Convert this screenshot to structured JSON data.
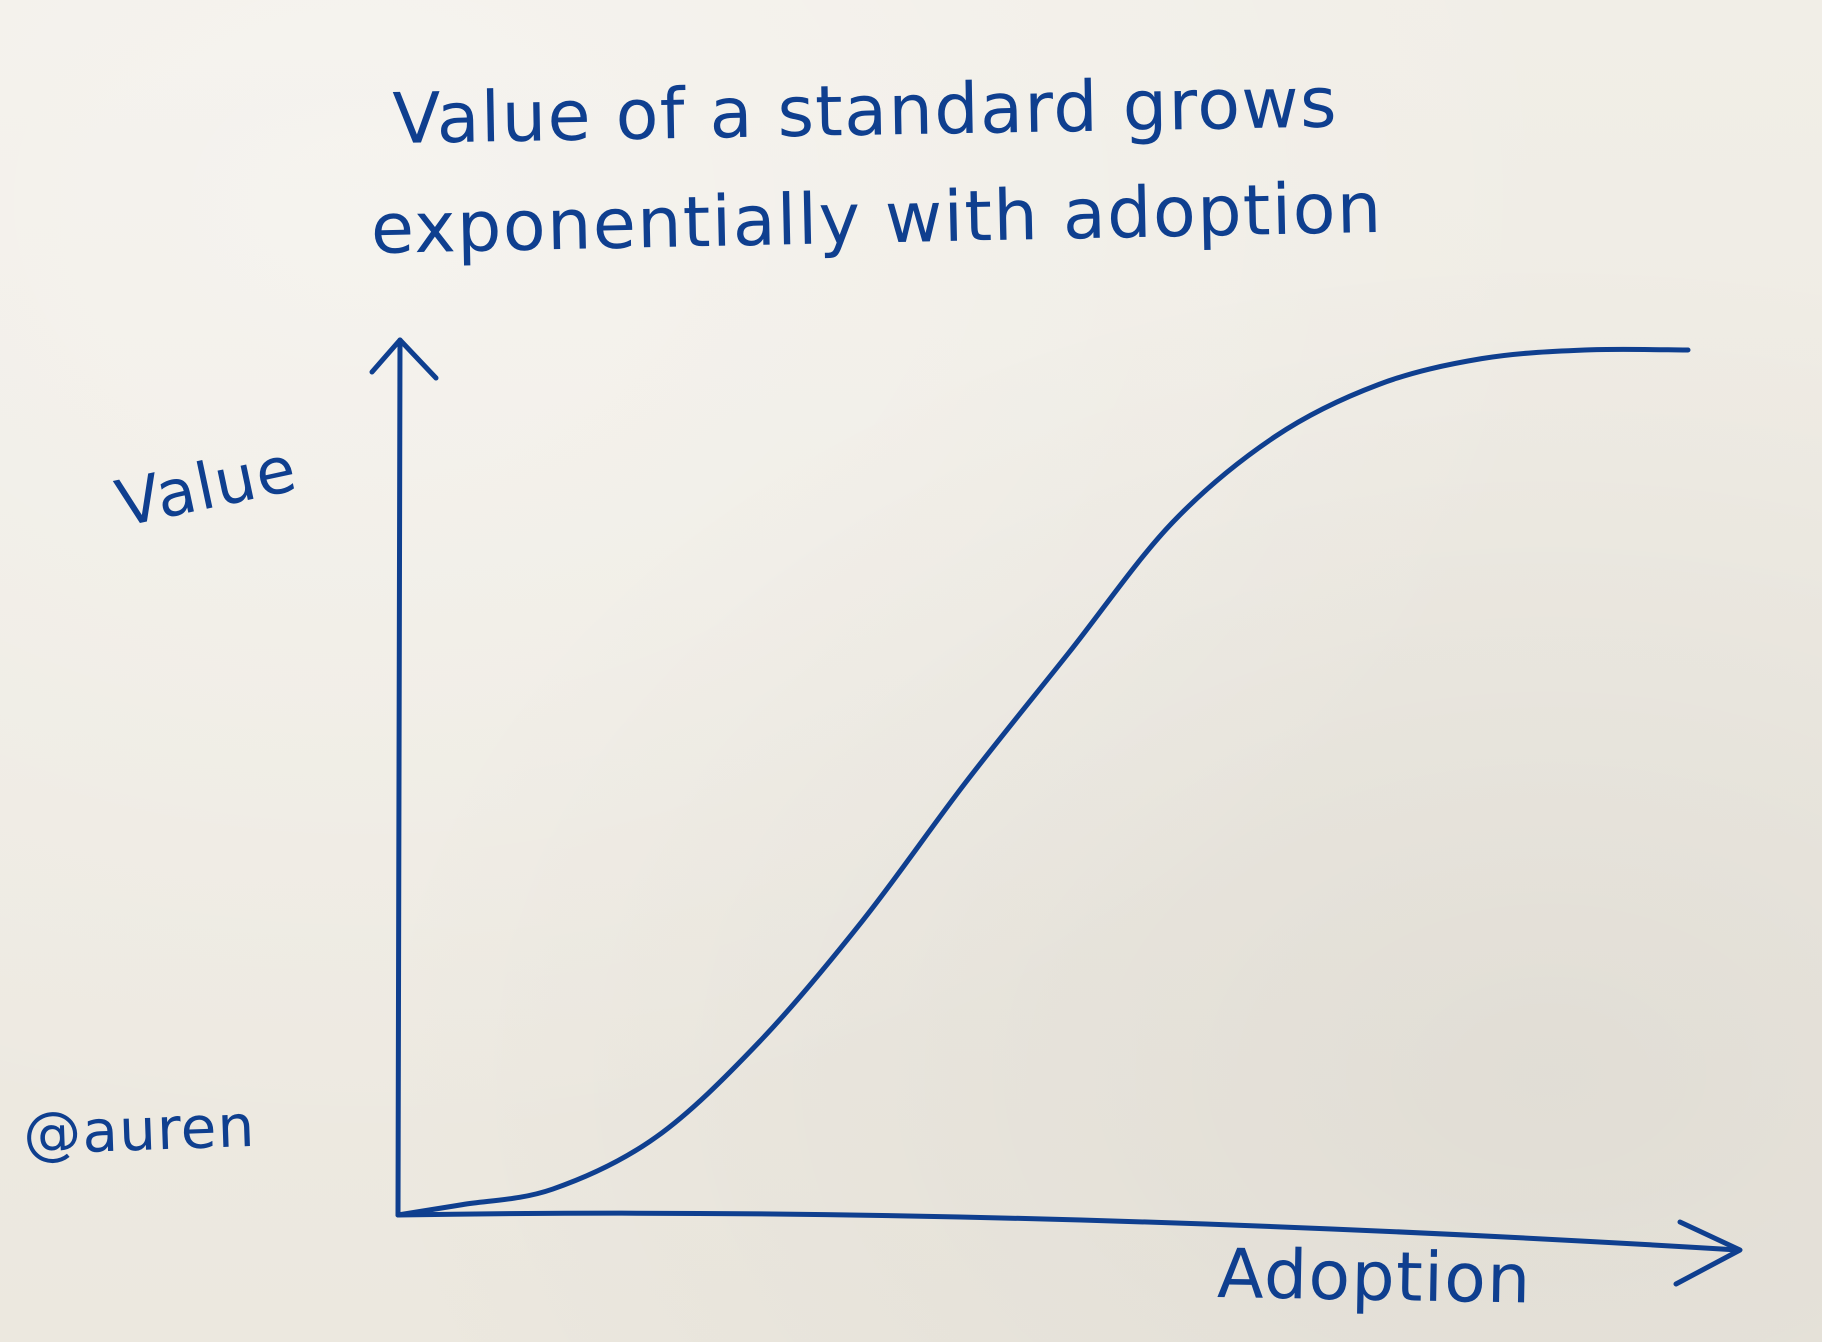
{
  "chart_data": {
    "type": "line",
    "title_lines": [
      "Value of a standard grows",
      "exponentially with adoption"
    ],
    "xlabel": "Adoption",
    "ylabel": "Value",
    "xlim": [
      0,
      1
    ],
    "ylim": [
      0,
      1
    ],
    "grid": false,
    "legend": "none",
    "series": [
      {
        "x": [
          0,
          0.05,
          0.12,
          0.2,
          0.28,
          0.36,
          0.44,
          0.52,
          0.6,
          0.68,
          0.76,
          0.84,
          0.92,
          1.0
        ],
        "values": [
          0,
          0.012,
          0.03,
          0.09,
          0.2,
          0.34,
          0.5,
          0.65,
          0.8,
          0.9,
          0.96,
          0.99,
          1.0,
          1.0
        ],
        "color": "#0f3f8f"
      }
    ]
  },
  "watermark": "@auren",
  "colors": {
    "ink": "#0f3f8f",
    "paper": "#efebe3"
  }
}
